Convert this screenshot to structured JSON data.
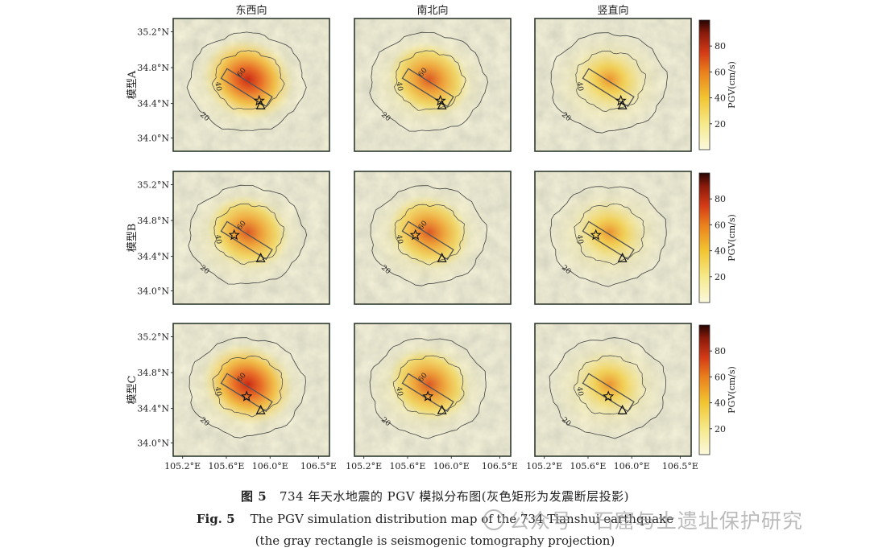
{
  "figure": {
    "columns": [
      "东西向",
      "南北向",
      "竖直向"
    ],
    "rows": [
      "模型A",
      "模型B",
      "模型C"
    ],
    "y_ticks": [
      "35.2°N",
      "34.8°N",
      "34.4°N",
      "34.0°N"
    ],
    "x_ticks": [
      "105.2°E",
      "105.6°E",
      "106.0°E",
      "106.5°E"
    ],
    "colorbar": {
      "label": "PGV(cm/s)",
      "ticks": [
        "80",
        "60",
        "40",
        "20"
      ]
    },
    "contour_labels": [
      "20",
      "40",
      "60"
    ]
  },
  "chart_data": {
    "type": "heatmap",
    "title": "",
    "xlabel": "",
    "ylabel": "",
    "columns": [
      "东西向",
      "南北向",
      "竖直向"
    ],
    "rows": [
      "模型A",
      "模型B",
      "模型C"
    ],
    "x_ticks": [
      105.2,
      105.6,
      106.0,
      106.5
    ],
    "y_ticks": [
      35.2,
      34.8,
      34.4,
      34.0
    ],
    "colorbar": {
      "label": "PGV(cm/s)",
      "range": [
        0,
        100
      ],
      "ticks": [
        20,
        40,
        60,
        80
      ]
    },
    "contour_levels": [
      20,
      40,
      60
    ]
  },
  "caption": {
    "zh_label": "图 5",
    "zh_text": "734 年天水地震的 PGV 模拟分布图(灰色矩形为发震断层投影)",
    "en_label": "Fig. 5",
    "en_text": "The PGV simulation distribution map of the 734 Tianshui earthquake",
    "en_note": "(the gray rectangle is seismogenic tomography projection)"
  },
  "watermark": {
    "text": "公众号 · 石窟与土遗址保护研究"
  },
  "colors": {
    "low": "#f7f4d0",
    "mid": "#f2c531",
    "high": "#d43a16",
    "max": "#3a0a05",
    "frame": "#2f3a2f",
    "fault": "#555555"
  }
}
